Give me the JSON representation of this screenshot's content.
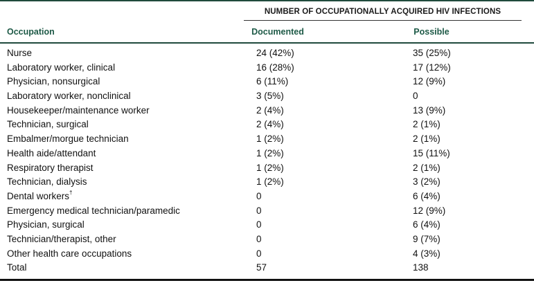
{
  "table": {
    "group_header": "NUMBER OF OCCUPATIONALLY ACQUIRED HIV INFECTIONS",
    "columns": {
      "occupation": "Occupation",
      "documented": "Documented",
      "possible": "Possible"
    },
    "rows": [
      {
        "occupation": "Nurse",
        "sup": "",
        "documented": "24 (42%)",
        "possible": "35 (25%)"
      },
      {
        "occupation": "Laboratory worker, clinical",
        "sup": "",
        "documented": "16 (28%)",
        "possible": "17 (12%)"
      },
      {
        "occupation": "Physician, nonsurgical",
        "sup": "",
        "documented": "6 (11%)",
        "possible": "12 (9%)"
      },
      {
        "occupation": "Laboratory worker, nonclinical",
        "sup": "",
        "documented": "3 (5%)",
        "possible": "0"
      },
      {
        "occupation": "Housekeeper/maintenance worker",
        "sup": "",
        "documented": "2 (4%)",
        "possible": "13 (9%)"
      },
      {
        "occupation": "Technician, surgical",
        "sup": "",
        "documented": "2 (4%)",
        "possible": "2 (1%)"
      },
      {
        "occupation": "Embalmer/morgue technician",
        "sup": "",
        "documented": "1 (2%)",
        "possible": "2 (1%)"
      },
      {
        "occupation": "Health aide/attendant",
        "sup": "",
        "documented": "1 (2%)",
        "possible": "15 (11%)"
      },
      {
        "occupation": "Respiratory therapist",
        "sup": "",
        "documented": "1 (2%)",
        "possible": "2 (1%)"
      },
      {
        "occupation": "Technician, dialysis",
        "sup": "",
        "documented": "1 (2%)",
        "possible": "3 (2%)"
      },
      {
        "occupation": "Dental workers",
        "sup": "†",
        "documented": "0",
        "possible": "6 (4%)"
      },
      {
        "occupation": "Emergency medical technician/paramedic",
        "sup": "",
        "documented": "0",
        "possible": "12 (9%)"
      },
      {
        "occupation": "Physician, surgical",
        "sup": "",
        "documented": "0",
        "possible": "6 (4%)"
      },
      {
        "occupation": "Technician/therapist, other",
        "sup": "",
        "documented": "0",
        "possible": "9 (7%)"
      },
      {
        "occupation": "Other health care occupations",
        "sup": "",
        "documented": "0",
        "possible": "4 (3%)"
      },
      {
        "occupation": "Total",
        "sup": "",
        "documented": "57",
        "possible": "138"
      }
    ]
  }
}
